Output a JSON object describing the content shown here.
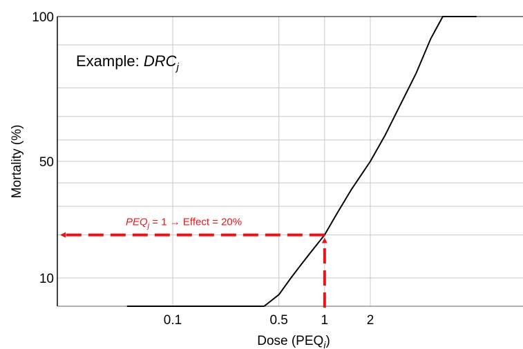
{
  "chart_data": {
    "type": "line",
    "title": "",
    "xlabel_main": "Dose (PEQ",
    "xlabel_sub": "i",
    "xlabel_close": ")",
    "ylabel": "Mortality (%)",
    "x_scale": "log",
    "y_scale": "probit",
    "x_ticks": [
      {
        "value": 0.1,
        "label": "0.1"
      },
      {
        "value": 0.5,
        "label": "0.5"
      },
      {
        "value": 1,
        "label": "1"
      },
      {
        "value": 2,
        "label": "2"
      }
    ],
    "y_ticks": [
      {
        "value": 10,
        "label": "10"
      },
      {
        "value": 50,
        "label": "50"
      },
      {
        "value": 100,
        "label": "100"
      }
    ],
    "grid": true,
    "series": [
      {
        "color": "#000000",
        "x": [
          0.05,
          0.07,
          0.1,
          0.15,
          0.2,
          0.3,
          0.4,
          0.5,
          0.6,
          0.7,
          0.8,
          1,
          1.2,
          1.5,
          2,
          2.5,
          3,
          4,
          5,
          6,
          8,
          10
        ],
        "y": [
          0.1,
          0.15,
          0.3,
          0.7,
          1.3,
          3,
          5,
          7.5,
          10,
          12.5,
          15,
          20,
          27,
          37,
          50,
          62,
          72,
          84,
          91,
          94.5,
          97.5,
          98.6
        ]
      }
    ],
    "annotation": {
      "text_var": "PEQ",
      "text_sub": "j",
      "text_rest": " = 1 → Effect = 20%",
      "color": "#e8141b",
      "x": 1,
      "y": 20
    },
    "inset_label": {
      "prefix": "Example: ",
      "italic": "DRC",
      "sub": "j"
    }
  }
}
